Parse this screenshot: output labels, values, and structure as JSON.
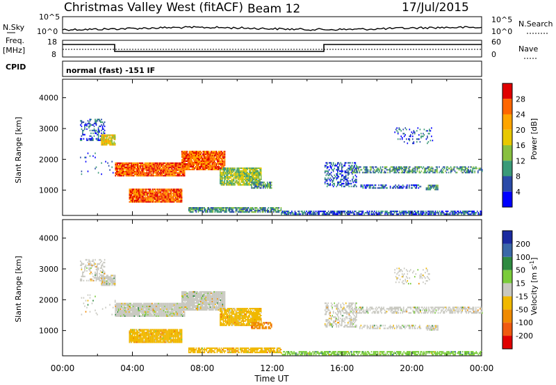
{
  "header": {
    "site": "Christmas Valley West (fitACF)",
    "beam": "Beam 12",
    "date": "17/Jul/2015"
  },
  "strips": {
    "nsky_label": "N.Sky",
    "nsky_top": "10^5",
    "nsky_bottom": "10^0",
    "nsearch_label": "N.Search",
    "freq_label": "Freq.",
    "freq_unit": "[MHz]",
    "freq_top": "18",
    "freq_bottom": "8",
    "nave_top": "60",
    "nave_bottom": "0",
    "nave_label": "Nave",
    "cpid_label": "CPID",
    "cpid_value": "normal (fast) -151 IF"
  },
  "chart_data": [
    {
      "type": "heatmap",
      "name": "power-panel",
      "ylabel": "Slant Range [km]",
      "xlabel": "Time UT",
      "xlim_hours": [
        0,
        24
      ],
      "ylim_km": [
        180,
        4600
      ],
      "x_ticks": [
        "00:00",
        "04:00",
        "08:00",
        "12:00",
        "16:00",
        "20:00",
        "00:00"
      ],
      "y_ticks": [
        "1000",
        "2000",
        "3000",
        "4000"
      ],
      "colorbar": {
        "label": "Power [dB]",
        "ticks": [
          "28",
          "24",
          "20",
          "16",
          "12",
          "8",
          "4"
        ],
        "colors": [
          "#e00000",
          "#ff6600",
          "#ffa500",
          "#e8c800",
          "#88c040",
          "#3a9a78",
          "#2a4aa8",
          "#0000ff"
        ]
      }
    },
    {
      "type": "heatmap",
      "name": "velocity-panel",
      "ylabel": "Slant Range [km]",
      "xlabel": "Time UT",
      "xlim_hours": [
        0,
        24
      ],
      "ylim_km": [
        180,
        4600
      ],
      "x_ticks": [
        "00:00",
        "04:00",
        "08:00",
        "12:00",
        "16:00",
        "20:00",
        "00:00"
      ],
      "y_ticks": [
        "1000",
        "2000",
        "3000",
        "4000"
      ],
      "colorbar": {
        "label": "Velocity [m s^-1]",
        "ticks": [
          "200",
          "100",
          "50",
          "15",
          "-15",
          "-50",
          "-100",
          "-200"
        ],
        "colors": [
          "#1a2aa0",
          "#3a68a8",
          "#2e8a40",
          "#7acc3a",
          "#c8c8c0",
          "#f0b800",
          "#f08a00",
          "#f05a10",
          "#e00000"
        ]
      }
    }
  ]
}
